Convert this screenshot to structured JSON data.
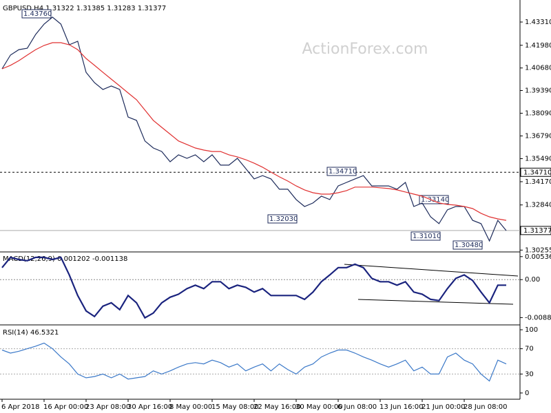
{
  "watermark": "ActionForex.com",
  "chart_data": [
    {
      "type": "line",
      "title": "GBPUSD,H4 1.31322 1.31385 1.31283 1.31377",
      "ylim": [
        1.30189,
        1.44571
      ],
      "yticks": [
        {
          "value": 1.4331,
          "label": "1.43310"
        },
        {
          "value": 1.4198,
          "label": "1.41980"
        },
        {
          "value": 1.4068,
          "label": "1.40680"
        },
        {
          "value": 1.3939,
          "label": "1.39390"
        },
        {
          "value": 1.3809,
          "label": "1.38090"
        },
        {
          "value": 1.3679,
          "label": "1.36790"
        },
        {
          "value": 1.3549,
          "label": "1.35490"
        },
        {
          "value": 1.3417,
          "label": "1.34170"
        },
        {
          "value": 1.3284,
          "label": "1.32840"
        },
        1.30255
      ],
      "series": [
        {
          "color": "#1c2a5a",
          "values": [
            1.4063,
            1.4142,
            1.4173,
            1.4181,
            1.426,
            1.4319,
            1.4359,
            1.4319,
            1.4201,
            1.4221,
            1.4043,
            1.3984,
            1.3945,
            1.3965,
            1.3945,
            1.3787,
            1.3768,
            1.365,
            1.361,
            1.359,
            1.3531,
            1.3571,
            1.3551,
            1.3571,
            1.3531,
            1.3571,
            1.3512,
            1.3512,
            1.3551,
            1.3492,
            1.3433,
            1.3452,
            1.3433,
            1.3374,
            1.3374,
            1.3315,
            1.3275,
            1.3295,
            1.3334,
            1.3315,
            1.3393,
            1.3413,
            1.3433,
            1.3452,
            1.3393,
            1.3393,
            1.3393,
            1.3374,
            1.3413,
            1.3275,
            1.3295,
            1.3216,
            1.3177,
            1.3256,
            1.3275,
            1.3275,
            1.3196,
            1.3177,
            1.3078,
            1.3196,
            1.3137
          ]
        },
        {
          "color": "#e03030",
          "values": [
            1.4063,
            1.4083,
            1.411,
            1.4142,
            1.4173,
            1.4197,
            1.4213,
            1.4213,
            1.4201,
            1.4173,
            1.4122,
            1.4083,
            1.4043,
            1.4004,
            1.3965,
            1.3925,
            1.3886,
            1.3827,
            1.3768,
            1.3728,
            1.3689,
            1.365,
            1.363,
            1.361,
            1.3598,
            1.359,
            1.359,
            1.3571,
            1.3559,
            1.3543,
            1.3523,
            1.35,
            1.3472,
            1.3445,
            1.3421,
            1.3393,
            1.337,
            1.3354,
            1.3346,
            1.3346,
            1.3354,
            1.3366,
            1.3386,
            1.3386,
            1.3386,
            1.3382,
            1.3378,
            1.337,
            1.3358,
            1.3346,
            1.3334,
            1.3315,
            1.3295,
            1.3287,
            1.3283,
            1.3275,
            1.3263,
            1.3236,
            1.3216,
            1.3204,
            1.3196
          ]
        }
      ],
      "hline": {
        "value": 1.3471,
        "label": "1.34710"
      },
      "current": {
        "value": 1.31377,
        "label": "1.31377"
      },
      "annotations": [
        "1.43760",
        "1.34710",
        "1.33140",
        "1.32030",
        "1.31010",
        "1.30480"
      ]
    },
    {
      "type": "line",
      "title": "MACD(12,26,9) 0.001202 -0.001138",
      "ylim": [
        -0.0104,
        0.0063
      ],
      "yticks": [
        0.005368,
        {
          "value": 0,
          "label": "0.00"
        },
        -0.008855
      ],
      "series": [
        {
          "color": "#1a237e",
          "values": [
            0.0028,
            0.0052,
            0.0047,
            0.0044,
            0.0052,
            0.0052,
            0.0047,
            0.0052,
            0.0011,
            -0.0037,
            -0.0073,
            -0.0086,
            -0.0062,
            -0.0054,
            -0.007,
            -0.0037,
            -0.0054,
            -0.0089,
            -0.0078,
            -0.0054,
            -0.0041,
            -0.0034,
            -0.0021,
            -0.0013,
            -0.0021,
            -0.0005,
            -0.0005,
            -0.0021,
            -0.0013,
            -0.0018,
            -0.0029,
            -0.0021,
            -0.0037,
            -0.0037,
            -0.0037,
            -0.0037,
            -0.0046,
            -0.0029,
            -0.0005,
            0.0011,
            0.0028,
            0.0028,
            0.0036,
            0.0028,
            0.0003,
            -0.0005,
            -0.0005,
            -0.0013,
            -0.0005,
            -0.0029,
            -0.0034,
            -0.0046,
            -0.0049,
            -0.0021,
            0.0003,
            0.0011,
            -0.0002,
            -0.0029,
            -0.0054,
            -0.0013,
            -0.0013
          ]
        }
      ]
    },
    {
      "type": "line",
      "title": "RSI(14) 46.5321",
      "ylim": [
        -8.8,
        106.6
      ],
      "yticks": [
        100,
        70,
        30,
        0
      ],
      "categories": [
        "6 Apr 2018",
        null,
        null,
        null,
        null,
        "16 Apr 00:00",
        null,
        null,
        null,
        null,
        "23 Apr 08:00",
        null,
        null,
        null,
        null,
        "30 Apr 16:00",
        null,
        null,
        null,
        null,
        "8 May 00:00",
        null,
        null,
        null,
        null,
        "15 May 08:00",
        null,
        null,
        null,
        null,
        "22 May 16:00",
        null,
        null,
        null,
        null,
        "30 May 00:00",
        null,
        null,
        null,
        null,
        "6 Jun 08:00",
        null,
        null,
        null,
        null,
        "13 Jun 16:00",
        null,
        null,
        null,
        null,
        "21 Jun 00:00",
        null,
        null,
        null,
        null,
        "28 Jun 08:00",
        null,
        null,
        null,
        null,
        null
      ],
      "series": [
        {
          "color": "#3a78c8",
          "values": [
            68,
            63,
            66,
            70,
            74,
            79,
            70,
            57,
            46,
            30,
            24,
            26,
            30,
            24,
            30,
            22,
            24,
            26,
            35,
            30,
            35,
            41,
            46,
            48,
            46,
            52,
            48,
            41,
            46,
            35,
            41,
            46,
            35,
            46,
            37,
            30,
            41,
            46,
            57,
            63,
            68,
            68,
            63,
            57,
            52,
            46,
            41,
            46,
            52,
            35,
            41,
            30,
            30,
            57,
            63,
            52,
            46,
            30,
            19,
            52,
            46
          ]
        }
      ]
    }
  ]
}
